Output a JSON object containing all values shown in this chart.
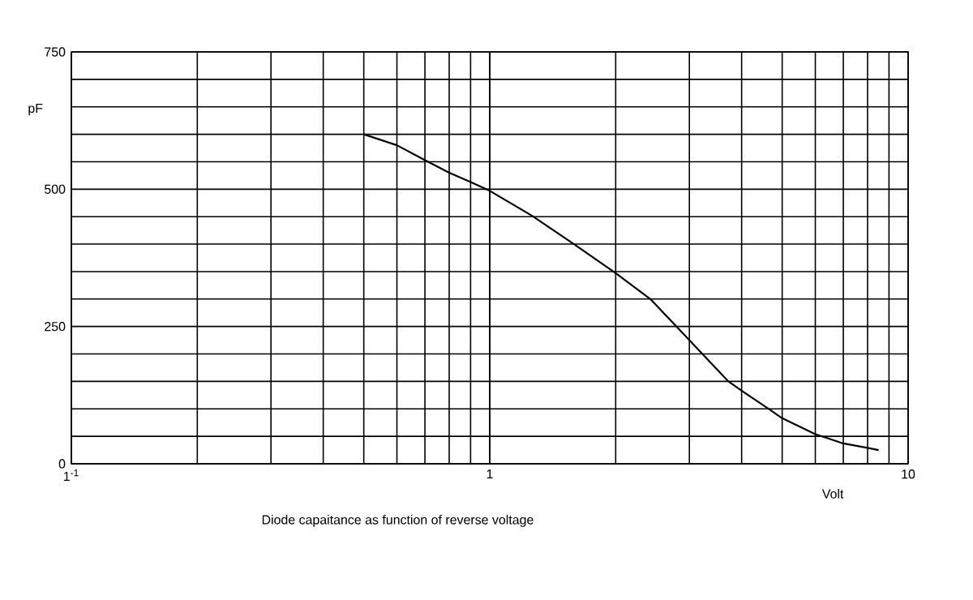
{
  "chart_data": {
    "type": "line",
    "xlabel": "Volt",
    "ylabel": "pF",
    "annotations": [
      "Diode capaitance as function of reverse voltage"
    ],
    "log": "x",
    "grid": true,
    "marker": "none",
    "line_style": "solid",
    "xlim": [
      0.1,
      10
    ],
    "xticks": [
      {
        "value": 0.1,
        "label": "1$^{-1}$"
      },
      1,
      10
    ],
    "ylim": [
      0,
      750
    ],
    "yticks": [
      0,
      250,
      500,
      750
    ],
    "series": [
      {
        "color": "#000000",
        "x": [
          0.5,
          0.6,
          0.7,
          0.8,
          0.9,
          1,
          1.26,
          1.59,
          2,
          2.42,
          2.81,
          3,
          3.26,
          3.72,
          4,
          4.66,
          5,
          6,
          7,
          8,
          8.5
        ],
        "values": [
          600,
          580,
          553,
          530,
          513,
          497,
          452,
          400,
          347,
          300,
          248,
          225,
          196,
          150,
          133,
          99,
          83,
          54,
          37,
          29,
          25
        ]
      }
    ]
  }
}
